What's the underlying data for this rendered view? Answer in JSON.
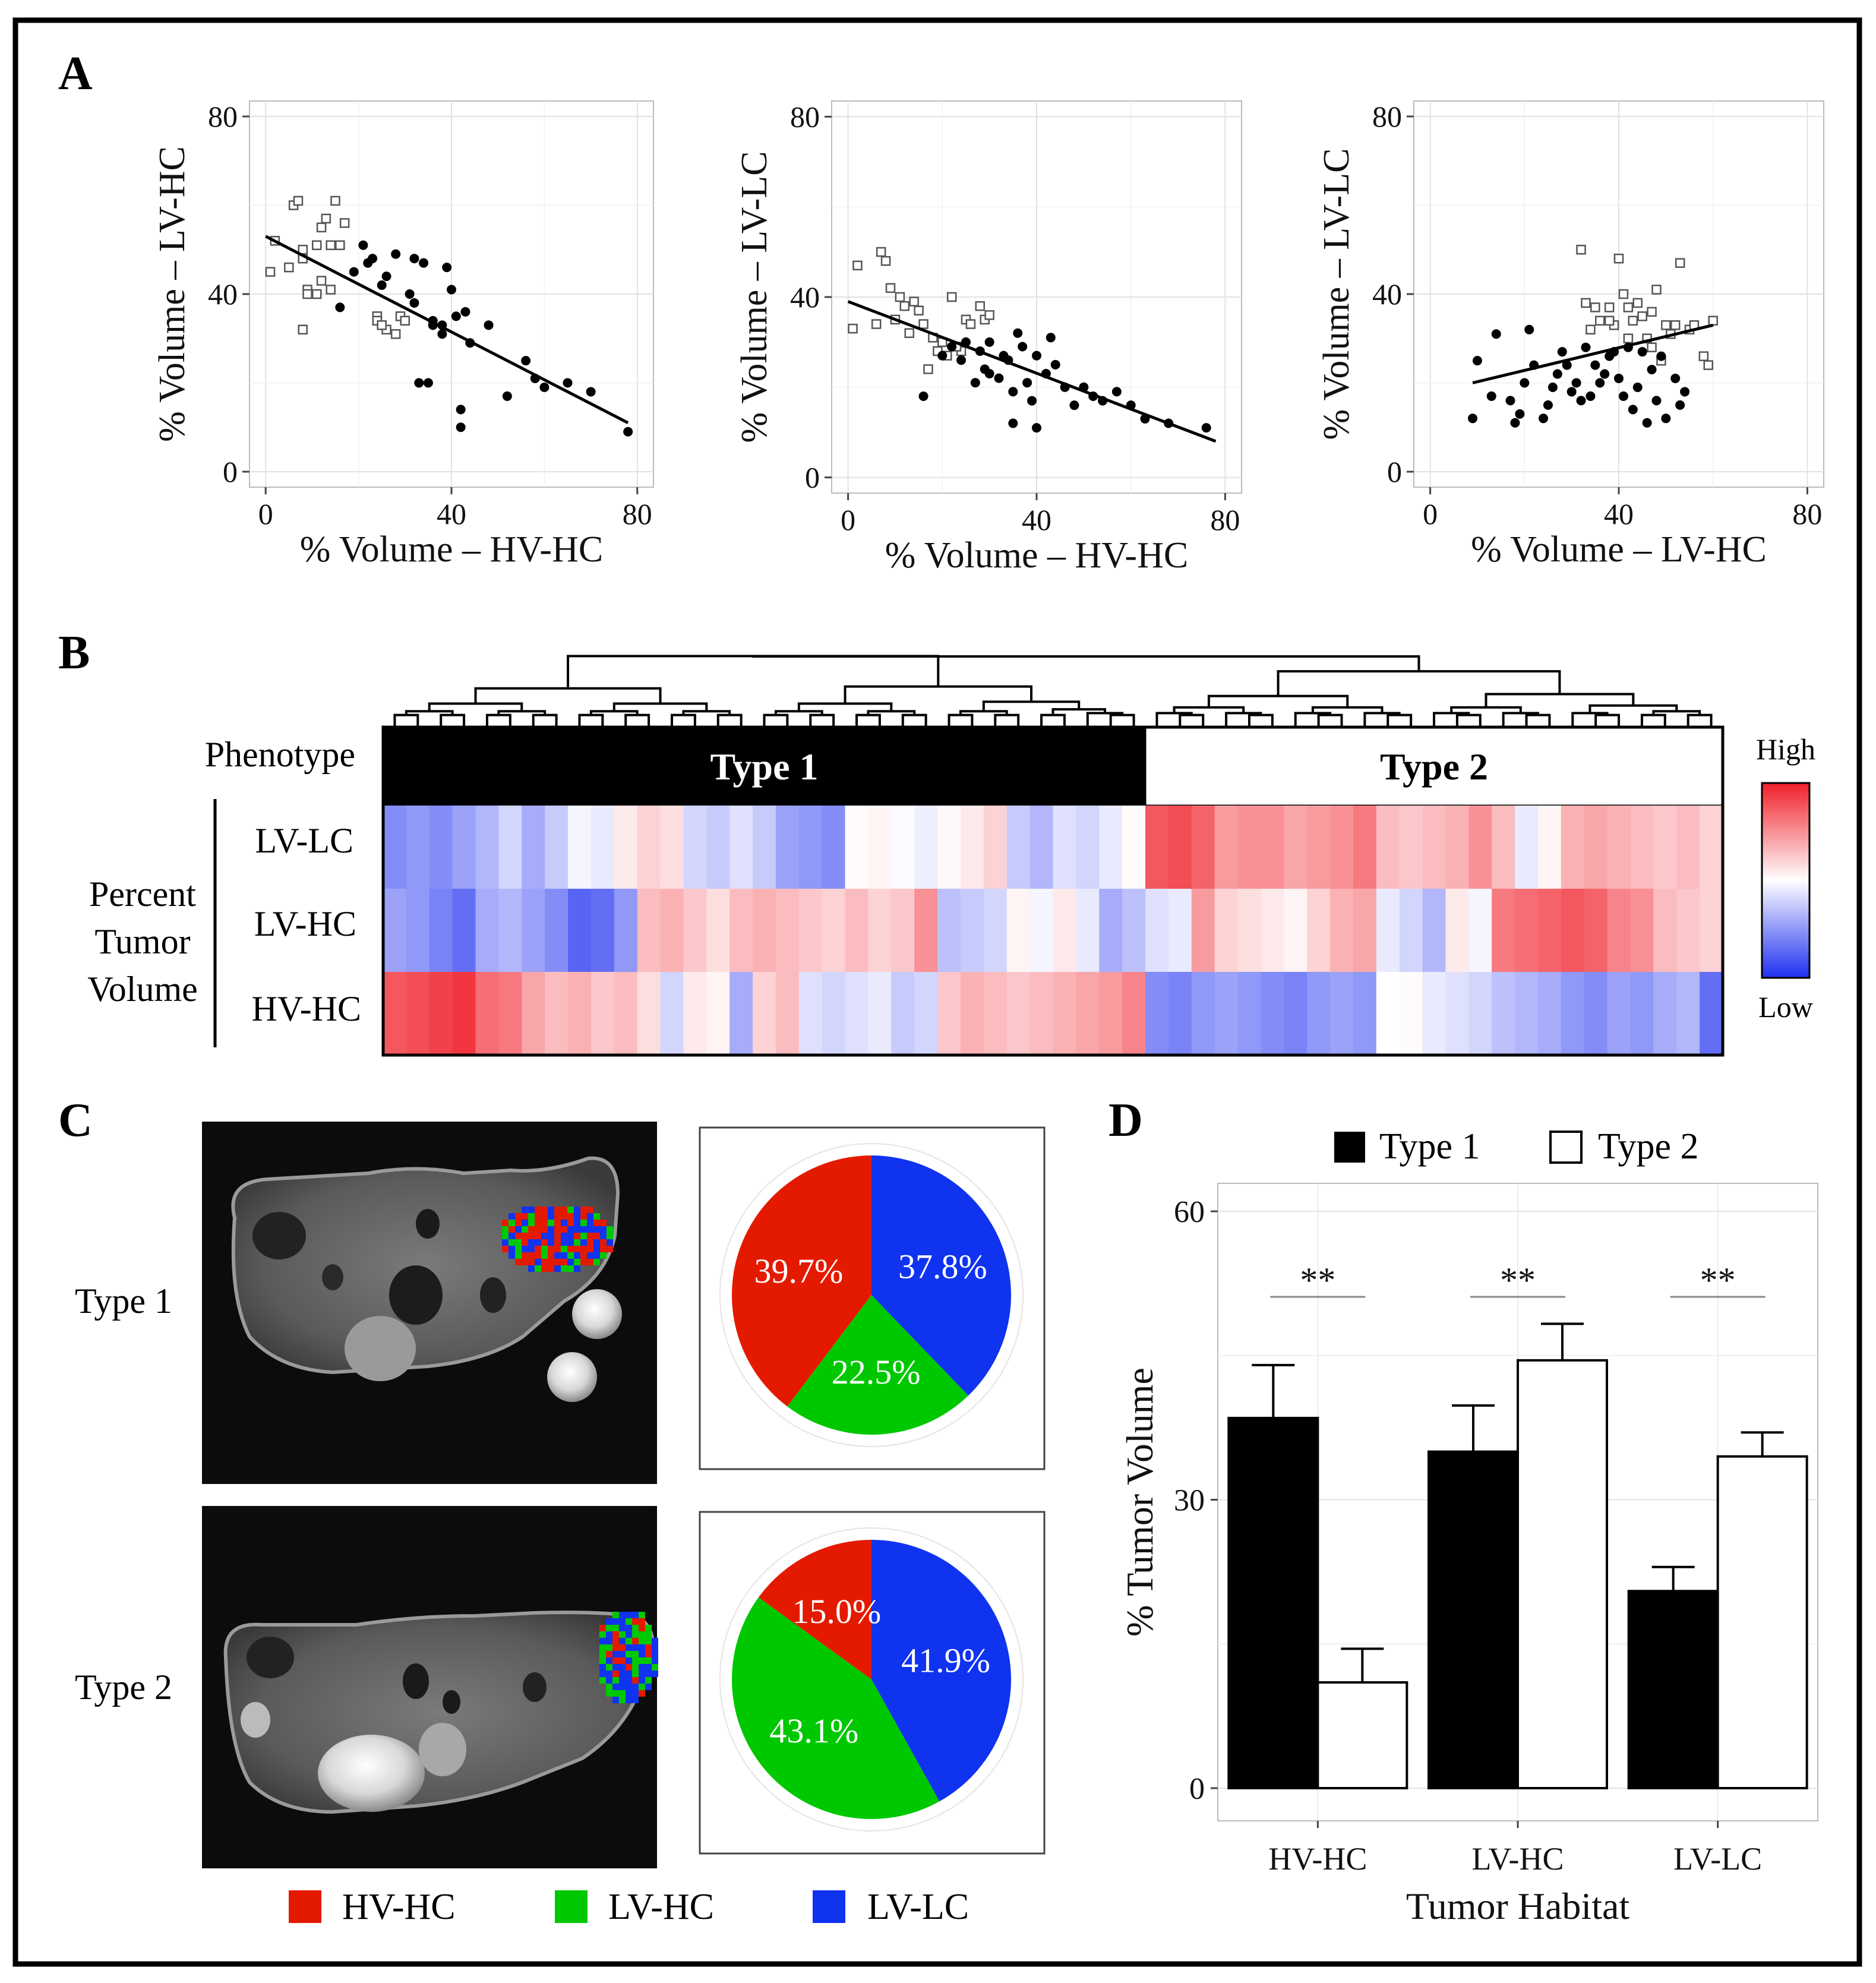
{
  "panels": {
    "A": "A",
    "B": "B",
    "C": "C",
    "D": "D"
  },
  "colors": {
    "hvhc": "#e41a00",
    "lvhc": "#00c800",
    "lvlc": "#1033f0",
    "heat_high": "#f0202a",
    "heat_mid": "#ffffff",
    "heat_low": "#2030f0"
  },
  "chart_data": [
    {
      "id": "A1",
      "type": "scatter",
      "xlabel": "% Volume – HV-HC",
      "ylabel": "% Volume – LV-HC",
      "xlim": [
        0,
        80
      ],
      "ylim": [
        0,
        80
      ],
      "xticks": [
        "0",
        "40",
        "80"
      ],
      "yticks": [
        "0",
        "40",
        "80"
      ],
      "fit_line": {
        "x": [
          0,
          78
        ],
        "y": [
          53,
          11
        ]
      },
      "series": [
        {
          "name": "Type 2",
          "marker": "open-square",
          "x": [
            1,
            6,
            7,
            8,
            11,
            12,
            13,
            14,
            15,
            9,
            12,
            16,
            2,
            5,
            8,
            9,
            11,
            14,
            17,
            24,
            26,
            28,
            24,
            25,
            29,
            30,
            8
          ],
          "y": [
            45,
            60,
            61,
            50,
            51,
            55,
            57,
            51,
            61,
            41,
            43,
            51,
            52,
            46,
            48,
            40,
            40,
            41,
            56,
            35,
            32,
            31,
            34,
            33,
            35,
            34,
            32
          ]
        },
        {
          "name": "Type 1",
          "marker": "filled-circle",
          "x": [
            16,
            19,
            21,
            22,
            23,
            25,
            26,
            28,
            31,
            32,
            34,
            36,
            38,
            39,
            40,
            41,
            42,
            44,
            48,
            52,
            56,
            58,
            60,
            65,
            70,
            78,
            33,
            35,
            32,
            42,
            43,
            38,
            36
          ],
          "y": [
            37,
            45,
            51,
            47,
            48,
            42,
            44,
            49,
            40,
            38,
            47,
            34,
            33,
            46,
            41,
            35,
            10,
            29,
            33,
            17,
            25,
            21,
            19,
            20,
            18,
            9,
            20,
            20,
            48,
            14,
            36,
            31,
            33
          ]
        }
      ]
    },
    {
      "id": "A2",
      "type": "scatter",
      "xlabel": "% Volume – HV-HC",
      "ylabel": "% Volume – LV-LC",
      "xlim": [
        0,
        80
      ],
      "ylim": [
        0,
        80
      ],
      "xticks": [
        "0",
        "40",
        "80"
      ],
      "yticks": [
        "0",
        "40",
        "80"
      ],
      "fit_line": {
        "x": [
          0,
          78
        ],
        "y": [
          39,
          8
        ]
      },
      "series": [
        {
          "name": "Type 2",
          "marker": "open-square",
          "x": [
            1,
            2,
            6,
            7,
            8,
            9,
            10,
            11,
            12,
            13,
            14,
            15,
            16,
            17,
            18,
            22,
            24,
            25,
            26,
            28,
            29,
            30,
            19,
            20,
            21,
            23
          ],
          "y": [
            33,
            47,
            34,
            50,
            48,
            42,
            35,
            40,
            38,
            32,
            39,
            37,
            34,
            24,
            31,
            40,
            28,
            35,
            34,
            38,
            35,
            36,
            28,
            30,
            27,
            29
          ]
        },
        {
          "name": "Type 1",
          "marker": "filled-circle",
          "x": [
            16,
            20,
            22,
            24,
            25,
            27,
            28,
            29,
            30,
            32,
            33,
            34,
            35,
            36,
            38,
            39,
            40,
            42,
            44,
            46,
            48,
            50,
            52,
            54,
            57,
            60,
            63,
            68,
            76,
            30,
            35,
            37,
            40,
            43
          ],
          "y": [
            18,
            27,
            29,
            26,
            30,
            21,
            28,
            24,
            23,
            22,
            27,
            26,
            19,
            32,
            21,
            17,
            11,
            23,
            25,
            20,
            16,
            20,
            18,
            17,
            19,
            16,
            13,
            12,
            11,
            30,
            12,
            29,
            27,
            31
          ]
        }
      ]
    },
    {
      "id": "A3",
      "type": "scatter",
      "xlabel": "% Volume – LV-HC",
      "ylabel": "% Volume – LV-LC",
      "xlim": [
        0,
        80
      ],
      "ylim": [
        0,
        80
      ],
      "xticks": [
        "0",
        "40",
        "80"
      ],
      "yticks": [
        "0",
        "40",
        "80"
      ],
      "fit_line": {
        "x": [
          9,
          60
        ],
        "y": [
          20,
          33
        ]
      },
      "series": [
        {
          "name": "Type 2",
          "marker": "open-square",
          "x": [
            32,
            33,
            34,
            36,
            38,
            39,
            40,
            41,
            42,
            43,
            44,
            45,
            46,
            47,
            48,
            49,
            50,
            51,
            52,
            53,
            55,
            56,
            58,
            59,
            60,
            35,
            38,
            42,
            47
          ],
          "y": [
            50,
            38,
            32,
            34,
            37,
            33,
            48,
            40,
            37,
            34,
            38,
            35,
            30,
            36,
            41,
            25,
            33,
            31,
            33,
            47,
            32,
            33,
            26,
            24,
            34,
            37,
            34,
            30,
            28
          ]
        },
        {
          "name": "Type 1",
          "marker": "filled-circle",
          "x": [
            9,
            10,
            13,
            14,
            17,
            18,
            19,
            20,
            21,
            22,
            24,
            25,
            26,
            27,
            28,
            29,
            30,
            31,
            32,
            33,
            34,
            35,
            36,
            37,
            38,
            39,
            40,
            41,
            42,
            43,
            44,
            45,
            46,
            47,
            48,
            49,
            50,
            52,
            53,
            54
          ],
          "y": [
            12,
            25,
            17,
            31,
            16,
            11,
            13,
            20,
            32,
            24,
            12,
            15,
            19,
            22,
            27,
            24,
            18,
            20,
            16,
            28,
            17,
            24,
            20,
            22,
            26,
            27,
            21,
            17,
            28,
            14,
            19,
            27,
            11,
            23,
            16,
            26,
            12,
            21,
            15,
            18
          ]
        }
      ]
    },
    {
      "id": "B",
      "type": "heatmap",
      "title": "Phenotype",
      "row_group_label": [
        "Percent",
        "Tumor",
        "Volume"
      ],
      "rows": [
        "LV-LC",
        "LV-HC",
        "HV-HC"
      ],
      "phenotype_labels": [
        "Type 1",
        "Type 2"
      ],
      "split_index": 33,
      "legend": {
        "high": "High",
        "low": "Low"
      },
      "values": [
        [
          -0.55,
          -0.5,
          -0.55,
          -0.45,
          -0.35,
          -0.2,
          -0.4,
          -0.25,
          -0.05,
          -0.1,
          0.1,
          0.2,
          0.15,
          -0.2,
          -0.25,
          -0.15,
          -0.25,
          -0.45,
          -0.5,
          -0.55,
          0.02,
          0.05,
          -0.02,
          -0.08,
          0.03,
          0.1,
          0.2,
          -0.25,
          -0.35,
          -0.15,
          -0.2,
          -0.1,
          0.02,
          0.75,
          0.8,
          0.7,
          0.45,
          0.5,
          0.5,
          0.4,
          0.45,
          0.5,
          0.6,
          0.3,
          0.25,
          0.3,
          0.35,
          0.5,
          0.3,
          -0.1,
          0.05,
          0.35,
          0.4,
          0.35,
          0.3,
          0.25,
          0.3,
          0.2
        ],
        [
          -0.45,
          -0.5,
          -0.6,
          -0.7,
          -0.4,
          -0.35,
          -0.45,
          -0.55,
          -0.75,
          -0.7,
          -0.5,
          0.3,
          0.35,
          0.25,
          0.15,
          0.3,
          0.35,
          0.3,
          0.25,
          0.2,
          0.3,
          0.2,
          0.25,
          0.5,
          -0.3,
          -0.25,
          -0.2,
          0.05,
          -0.05,
          0.1,
          -0.1,
          -0.4,
          -0.3,
          -0.15,
          -0.1,
          0.45,
          0.2,
          0.15,
          0.1,
          0.05,
          0.2,
          0.35,
          0.4,
          -0.1,
          -0.2,
          -0.35,
          0.1,
          -0.05,
          0.6,
          0.65,
          0.7,
          0.75,
          0.7,
          0.55,
          0.5,
          0.3,
          0.25,
          0.2
        ],
        [
          0.75,
          0.8,
          0.85,
          0.9,
          0.65,
          0.6,
          0.4,
          0.3,
          0.35,
          0.25,
          0.3,
          0.15,
          -0.2,
          0.1,
          0.05,
          -0.4,
          0.2,
          0.3,
          -0.15,
          -0.2,
          -0.15,
          -0.1,
          -0.25,
          -0.2,
          0.25,
          0.35,
          0.3,
          0.25,
          0.3,
          0.35,
          0.4,
          0.45,
          0.55,
          -0.55,
          -0.6,
          -0.5,
          -0.45,
          -0.5,
          -0.55,
          -0.6,
          -0.5,
          -0.45,
          -0.5,
          0.0,
          0.02,
          -0.1,
          -0.15,
          -0.2,
          -0.3,
          -0.35,
          -0.4,
          -0.5,
          -0.55,
          -0.45,
          -0.5,
          -0.4,
          -0.35,
          -0.7
        ]
      ]
    },
    {
      "id": "C1",
      "type": "pie",
      "label": "Type 1",
      "slices": [
        {
          "name": "LV-LC",
          "value": 37.8,
          "label": "37.8%"
        },
        {
          "name": "LV-HC",
          "value": 22.5,
          "label": "22.5%"
        },
        {
          "name": "HV-HC",
          "value": 39.7,
          "label": "39.7%"
        }
      ]
    },
    {
      "id": "C2",
      "type": "pie",
      "label": "Type 2",
      "slices": [
        {
          "name": "LV-LC",
          "value": 41.9,
          "label": "41.9%"
        },
        {
          "name": "LV-HC",
          "value": 43.1,
          "label": "43.1%"
        },
        {
          "name": "HV-HC",
          "value": 15.0,
          "label": "15.0%"
        }
      ]
    },
    {
      "id": "D",
      "type": "bar",
      "xlabel": "Tumor Habitat",
      "ylabel": "% Tumor Volume",
      "categories": [
        "HV-HC",
        "LV-HC",
        "LV-LC"
      ],
      "ylim": [
        0,
        60
      ],
      "yticks": [
        "0",
        "30",
        "60"
      ],
      "significance": [
        "**",
        "**",
        "**"
      ],
      "series": [
        {
          "name": "Type 1",
          "values": [
            38.5,
            35,
            20.5
          ],
          "errors": [
            5.5,
            4.8,
            2.5
          ]
        },
        {
          "name": "Type 2",
          "values": [
            11,
            44.5,
            34.5
          ],
          "errors": [
            3.5,
            3.8,
            2.5
          ]
        }
      ]
    }
  ],
  "legend_c": [
    {
      "name": "HV-HC",
      "label": "HV-HC"
    },
    {
      "name": "LV-HC",
      "label": "LV-HC"
    },
    {
      "name": "LV-LC",
      "label": "LV-LC"
    }
  ]
}
